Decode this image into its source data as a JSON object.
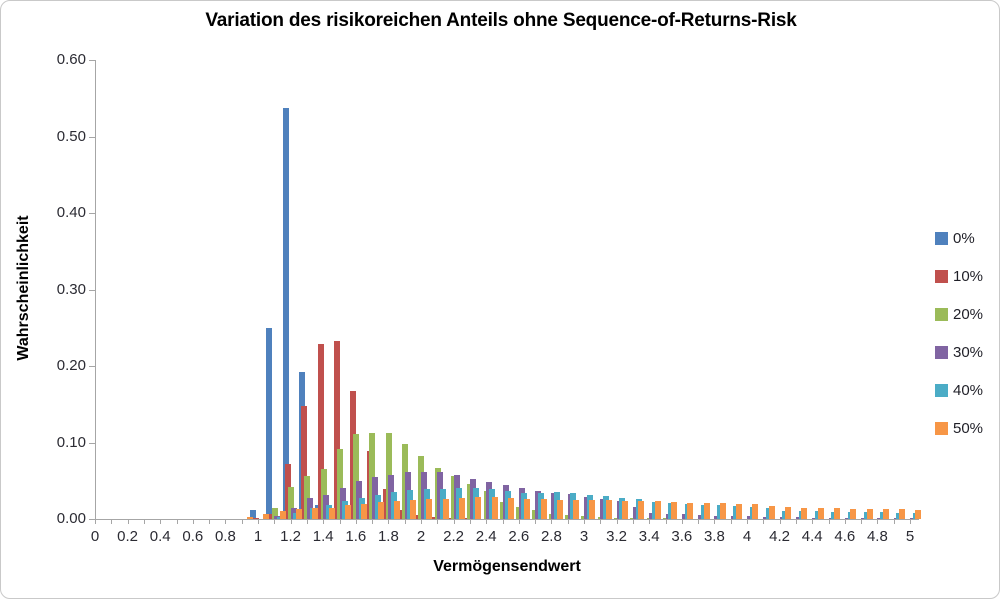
{
  "title": "Variation des risikoreichen Anteils ohne Sequence-of-Returns-Risk",
  "y_axis": {
    "title": "Wahrscheinlichkeit",
    "tick_labels": [
      "0.00",
      "0.10",
      "0.20",
      "0.30",
      "0.40",
      "0.50",
      "0.60"
    ],
    "min": 0,
    "max": 0.6
  },
  "x_axis": {
    "title": "Vermögensendwert",
    "tick_labels": [
      "0",
      "0.2",
      "0.4",
      "0.6",
      "0.8",
      "1",
      "1.2",
      "1.4",
      "1.6",
      "1.8",
      "2",
      "2.2",
      "2.4",
      "2.6",
      "2.8",
      "3",
      "3.2",
      "3.4",
      "3.6",
      "3.8",
      "4",
      "4.2",
      "4.4",
      "4.6",
      "4.8",
      "5"
    ]
  },
  "legend": {
    "position": "right",
    "items": [
      {
        "label": "0%",
        "color": "#4F81BD"
      },
      {
        "label": "10%",
        "color": "#C0504D"
      },
      {
        "label": "20%",
        "color": "#9BBB59"
      },
      {
        "label": "30%",
        "color": "#8064A2"
      },
      {
        "label": "40%",
        "color": "#4BACC6"
      },
      {
        "label": "50%",
        "color": "#F79646"
      }
    ]
  },
  "chart_data": {
    "type": "bar",
    "title": "Variation des risikoreichen Anteils ohne Sequence-of-Returns-Risk",
    "xlabel": "Vermögensendwert",
    "ylabel": "Wahrscheinlichkeit",
    "ylim": [
      0,
      0.6
    ],
    "grid": false,
    "legend_position": "right",
    "x_label_step": 0.2,
    "categories": [
      0,
      0.1,
      0.2,
      0.3,
      0.4,
      0.5,
      0.6,
      0.7,
      0.8,
      0.9,
      1,
      1.1,
      1.2,
      1.3,
      1.4,
      1.5,
      1.6,
      1.7,
      1.8,
      1.9,
      2,
      2.1,
      2.2,
      2.3,
      2.4,
      2.5,
      2.6,
      2.7,
      2.8,
      2.9,
      3,
      3.1,
      3.2,
      3.3,
      3.4,
      3.5,
      3.6,
      3.7,
      3.8,
      3.9,
      4,
      4.1,
      4.2,
      4.3,
      4.4,
      4.5,
      4.6,
      4.7,
      4.8,
      4.9,
      5
    ],
    "series": [
      {
        "name": "0%",
        "color": "#4F81BD",
        "values": [
          0,
          0,
          0,
          0,
          0,
          0,
          0,
          0,
          0,
          0,
          0.012,
          0.25,
          0.537,
          0.192,
          0.018,
          0.004,
          0,
          0,
          0,
          0,
          0,
          0,
          0,
          0,
          0,
          0,
          0,
          0,
          0,
          0,
          0,
          0,
          0,
          0,
          0,
          0,
          0,
          0,
          0,
          0,
          0,
          0,
          0,
          0,
          0,
          0,
          0,
          0,
          0,
          0,
          0
        ]
      },
      {
        "name": "10%",
        "color": "#C0504D",
        "values": [
          0,
          0,
          0,
          0,
          0,
          0,
          0,
          0,
          0,
          0,
          0.002,
          0.006,
          0.072,
          0.148,
          0.229,
          0.233,
          0.168,
          0.089,
          0.039,
          0.012,
          0.005,
          0.003,
          0.002,
          0.001,
          0,
          0,
          0,
          0,
          0,
          0,
          0,
          0,
          0,
          0,
          0,
          0,
          0,
          0,
          0,
          0,
          0,
          0,
          0,
          0,
          0,
          0,
          0,
          0,
          0,
          0,
          0
        ]
      },
      {
        "name": "20%",
        "color": "#9BBB59",
        "values": [
          0,
          0,
          0,
          0,
          0,
          0,
          0,
          0,
          0,
          0,
          0,
          0.015,
          0.042,
          0.056,
          0.065,
          0.092,
          0.111,
          0.113,
          0.112,
          0.098,
          0.082,
          0.067,
          0.056,
          0.046,
          0.037,
          0.022,
          0.016,
          0.012,
          0.007,
          0.005,
          0.004,
          0.003,
          0.002,
          0.002,
          0.001,
          0.001,
          0,
          0,
          0,
          0,
          0,
          0,
          0,
          0,
          0,
          0,
          0,
          0,
          0,
          0,
          0
        ]
      },
      {
        "name": "30%",
        "color": "#8064A2",
        "values": [
          0,
          0,
          0,
          0,
          0,
          0,
          0,
          0,
          0,
          0,
          0,
          0.004,
          0.015,
          0.028,
          0.032,
          0.04,
          0.05,
          0.055,
          0.058,
          0.061,
          0.061,
          0.062,
          0.057,
          0.052,
          0.049,
          0.045,
          0.041,
          0.037,
          0.034,
          0.033,
          0.029,
          0.026,
          0.023,
          0.016,
          0.008,
          0.007,
          0.006,
          0.005,
          0.0045,
          0.004,
          0.0035,
          0.003,
          0.003,
          0.0025,
          0.002,
          0.002,
          0.0015,
          0.0015,
          0.001,
          0.001,
          0.001
        ]
      },
      {
        "name": "40%",
        "color": "#4BACC6",
        "values": [
          0,
          0,
          0,
          0,
          0,
          0,
          0,
          0,
          0,
          0,
          0,
          0.003,
          0.008,
          0.015,
          0.019,
          0.024,
          0.028,
          0.031,
          0.035,
          0.038,
          0.0395,
          0.039,
          0.04,
          0.0405,
          0.0395,
          0.0365,
          0.0345,
          0.0345,
          0.035,
          0.034,
          0.032,
          0.03,
          0.028,
          0.026,
          0.022,
          0.0205,
          0.0196,
          0.019,
          0.018,
          0.0167,
          0.0157,
          0.0145,
          0.011,
          0.0105,
          0.011,
          0.0098,
          0.0098,
          0.0095,
          0.009,
          0.0085,
          0.008
        ]
      },
      {
        "name": "50%",
        "color": "#F79646",
        "values": [
          0,
          0,
          0,
          0,
          0,
          0,
          0,
          0,
          0,
          0.003,
          0.007,
          0.011,
          0.013,
          0.0145,
          0.015,
          0.018,
          0.02,
          0.022,
          0.024,
          0.025,
          0.0265,
          0.0265,
          0.027,
          0.0285,
          0.029,
          0.0275,
          0.0265,
          0.026,
          0.0255,
          0.0245,
          0.025,
          0.0245,
          0.024,
          0.0235,
          0.023,
          0.0225,
          0.0205,
          0.021,
          0.0215,
          0.0196,
          0.0193,
          0.017,
          0.0155,
          0.015,
          0.0147,
          0.014,
          0.0134,
          0.0131,
          0.0134,
          0.013,
          0.012
        ]
      }
    ]
  }
}
